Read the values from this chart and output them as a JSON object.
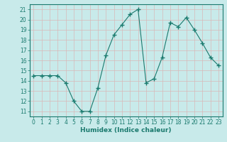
{
  "x": [
    0,
    1,
    2,
    3,
    4,
    5,
    6,
    7,
    8,
    9,
    10,
    11,
    12,
    13,
    14,
    15,
    16,
    17,
    18,
    19,
    20,
    21,
    22,
    23
  ],
  "y": [
    14.5,
    14.5,
    14.5,
    14.5,
    13.8,
    12.0,
    11.0,
    11.0,
    13.3,
    16.5,
    18.5,
    19.5,
    20.5,
    21.0,
    13.8,
    14.2,
    16.3,
    19.7,
    19.3,
    20.2,
    19.0,
    17.7,
    16.3,
    15.5
  ],
  "line_color": "#1a7a6e",
  "marker": "+",
  "marker_size": 4,
  "bg_color": "#c8eaea",
  "grid_color": "#b0d8d8",
  "xlabel": "Humidex (Indice chaleur)",
  "ylim": [
    10.5,
    21.5
  ],
  "xlim": [
    -0.5,
    23.5
  ],
  "yticks": [
    11,
    12,
    13,
    14,
    15,
    16,
    17,
    18,
    19,
    20,
    21
  ],
  "xticks": [
    0,
    1,
    2,
    3,
    4,
    5,
    6,
    7,
    8,
    9,
    10,
    11,
    12,
    13,
    14,
    15,
    16,
    17,
    18,
    19,
    20,
    21,
    22,
    23
  ],
  "tick_color": "#1a7a6e",
  "label_fontsize": 6.5,
  "tick_fontsize": 5.5,
  "spine_color": "#1a7a6e",
  "linewidth": 0.8
}
